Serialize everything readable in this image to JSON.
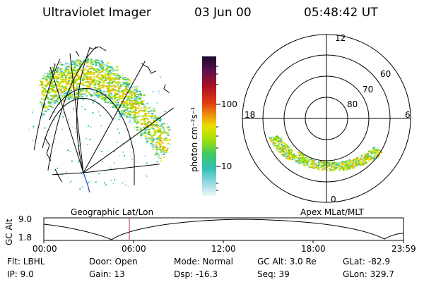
{
  "header": {
    "title": "Ultraviolet Imager",
    "date": "03 Jun 00",
    "time": "05:48:42 UT"
  },
  "colorbar": {
    "unit_label": "photon cm⁻²s⁻¹",
    "ticks": [
      "100",
      "10"
    ],
    "colors": [
      "#1a0a2a",
      "#3a1050",
      "#801030",
      "#c01020",
      "#e04010",
      "#f08010",
      "#f0b000",
      "#e8e000",
      "#b0e000",
      "#60d030",
      "#20c080",
      "#30c0c0",
      "#90d8e0",
      "#e0f0f4"
    ]
  },
  "left_map": {
    "label": "Geographic Lat/Lon"
  },
  "right_map": {
    "label": "Apex MLat/MLT",
    "mlt_labels": {
      "top": "12",
      "left": "18",
      "right": "6",
      "bottom": "0"
    },
    "lat_labels": [
      "60",
      "70",
      "80"
    ]
  },
  "timeline": {
    "ylabel": "GC Alt",
    "y_ticks": [
      "9.0",
      "1.8"
    ],
    "x_ticks": [
      "00:00",
      "06:00",
      "12:00",
      "18:00",
      "23:59"
    ],
    "marker_color": "#c03040"
  },
  "info": {
    "flt": "Flt: LBHL",
    "ip": "IP: 9.0",
    "door": "Door: Open",
    "gain": "Gain: 13",
    "mode": "Mode: Normal",
    "dsp": "Dsp: -16.3",
    "gc_alt": "GC Alt: 3.0 Re",
    "seq": "Seq: 39",
    "glat": "GLat: -82.9",
    "glon": "GLon: 329.7"
  }
}
